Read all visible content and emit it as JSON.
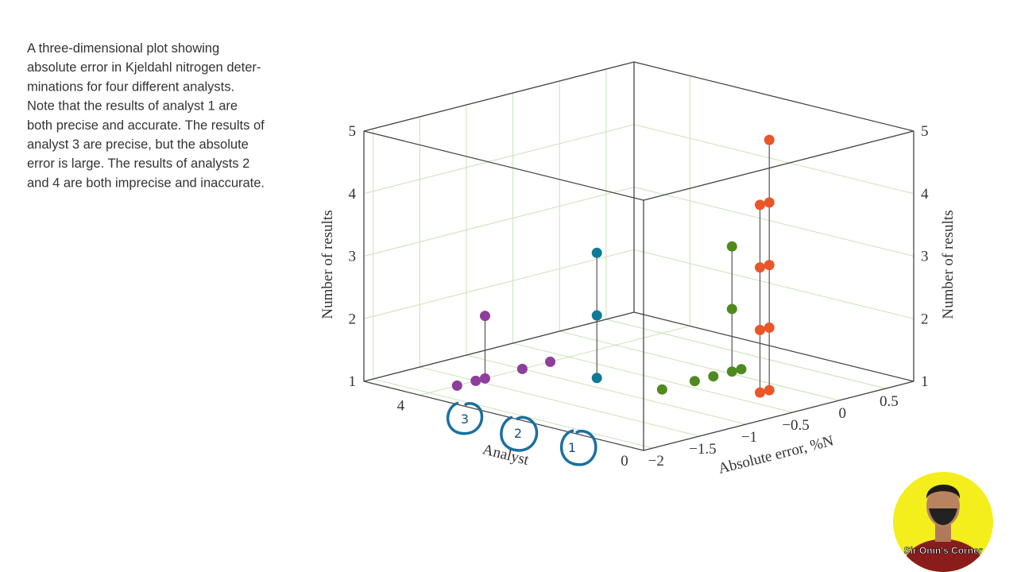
{
  "description": [
    "A three-dimensional plot showing",
    "absolute error in Kjeldahl nitrogen deter-",
    "minations for four different analysts.",
    "Note that the results of analyst 1 are",
    "both precise and accurate. The results of",
    "analyst 3 are precise, but the absolute",
    "error is large. The results of analysts 2",
    "and 4 are both imprecise and inaccurate."
  ],
  "chart_data": {
    "type": "scatter3d",
    "xlabel": "Absolute error, %N",
    "ylabel": "Analyst",
    "zlabel": "Number of results",
    "xlim": [
      -2.1,
      0.8
    ],
    "xticks": [
      {
        "value": -2,
        "label": "−2"
      },
      {
        "value": -1.5,
        "label": "−1.5"
      },
      {
        "value": -1,
        "label": "−1"
      },
      {
        "value": -0.5,
        "label": "−0.5"
      },
      0,
      0.5
    ],
    "ylim": [
      0,
      5
    ],
    "yticks": [
      0,
      4
    ],
    "zlim": [
      1,
      5
    ],
    "zticks": [
      1,
      2,
      3,
      4,
      5
    ],
    "grid": true,
    "series": [
      {
        "color": "#8e3e9c",
        "x": [
          -1.7,
          -1.5,
          -1.4,
          -1.0,
          -0.7
        ],
        "y": [
          4,
          4,
          4,
          4,
          4
        ],
        "values": [
          1,
          1,
          2,
          1,
          1
        ]
      },
      {
        "color": "#0f7a94",
        "x": [
          -0.8
        ],
        "y": [
          3
        ],
        "values": [
          3
        ]
      },
      {
        "color": "#4e8a1e",
        "x": [
          -0.7,
          -0.35,
          -0.15,
          0.05,
          0.15
        ],
        "y": [
          2,
          2,
          2,
          2,
          2
        ],
        "values": [
          1,
          1,
          1,
          3,
          1
        ]
      },
      {
        "color": "#e9562a",
        "x": [
          -0.25,
          -0.15
        ],
        "y": [
          1,
          1
        ],
        "values": [
          4,
          5
        ]
      }
    ],
    "annotations": [
      "3",
      "2",
      "1"
    ]
  },
  "watermark": "Sir Onin's Corner"
}
